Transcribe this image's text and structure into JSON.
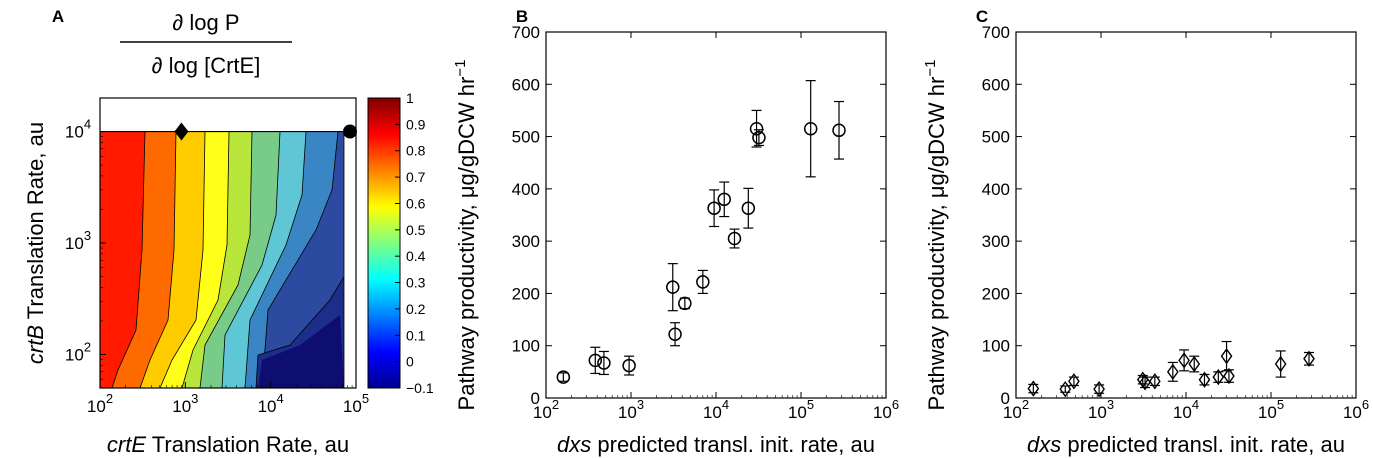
{
  "chart_data": [
    {
      "panel": "A",
      "type": "heatmap",
      "title_numerator": "∂ log P",
      "title_denominator": "∂ log [CrtE]",
      "xlabel_italic": "crtE",
      "xlabel_rest": " Translation Rate, au",
      "ylabel_italic": "crtB",
      "ylabel_rest": " Translation Rate, au",
      "xscale": "log",
      "yscale": "log",
      "xlim": [
        100,
        100000
      ],
      "ylim": [
        50,
        20000
      ],
      "x_ticks": [
        {
          "value": 100,
          "base": "10",
          "exp": "2"
        },
        {
          "value": 1000,
          "base": "10",
          "exp": "3"
        },
        {
          "value": 10000,
          "base": "10",
          "exp": "4"
        },
        {
          "value": 100000,
          "base": "10",
          "exp": "5"
        }
      ],
      "y_ticks": [
        {
          "value": 100,
          "base": "10",
          "exp": "2"
        },
        {
          "value": 1000,
          "base": "10",
          "exp": "3"
        },
        {
          "value": 10000,
          "base": "10",
          "exp": "4"
        }
      ],
      "contour_levels": [
        1.0,
        0.9,
        0.8,
        0.7,
        0.6,
        0.5,
        0.4,
        0.3,
        0.2,
        0.1,
        0.0,
        -0.1
      ],
      "level_colors": [
        "#ff1a00",
        "#ff6a00",
        "#ffcc00",
        "#ffff1a",
        "#b8e63a",
        "#78cc88",
        "#5ec6d4",
        "#3a86c4",
        "#2c4aa0",
        "#1c2d8a",
        "#0e0e70"
      ],
      "markers": [
        {
          "shape": "diamond",
          "x": 900,
          "y": 10000
        },
        {
          "shape": "circle",
          "x": 85000,
          "y": 10000
        }
      ],
      "colorbar_ticks": [
        "1",
        "0.9",
        "0.8",
        "0.7",
        "0.6",
        "0.5",
        "0.4",
        "0.3",
        "0.2",
        "0.1",
        "0",
        "−0.1"
      ],
      "colorbar_range": [
        -0.1,
        1.0
      ]
    },
    {
      "panel": "B",
      "type": "scatter",
      "marker": "circle",
      "xlabel_italic": "dxs",
      "xlabel_rest": " predicted transl.  init. rate, au",
      "ylabel": "Pathway productivity, μg/gDCW hr",
      "ylabel_sup": "−1",
      "xscale": "log",
      "xlim": [
        100,
        1000000
      ],
      "ylim": [
        0,
        700
      ],
      "y_ticks": [
        "0",
        "100",
        "200",
        "300",
        "400",
        "500",
        "600",
        "700"
      ],
      "x_ticks": [
        {
          "value": 100,
          "base": "10",
          "exp": "2"
        },
        {
          "value": 1000,
          "base": "10",
          "exp": "3"
        },
        {
          "value": 10000,
          "base": "10",
          "exp": "4"
        },
        {
          "value": 100000,
          "base": "10",
          "exp": "5"
        },
        {
          "value": 1000000,
          "base": "10",
          "exp": "6"
        }
      ],
      "points": [
        {
          "x": 160,
          "y": 40,
          "err": 8
        },
        {
          "x": 380,
          "y": 72,
          "err": 25
        },
        {
          "x": 480,
          "y": 67,
          "err": 22
        },
        {
          "x": 950,
          "y": 62,
          "err": 18
        },
        {
          "x": 3100,
          "y": 212,
          "err": 45
        },
        {
          "x": 3300,
          "y": 122,
          "err": 22
        },
        {
          "x": 4300,
          "y": 181,
          "err": 10
        },
        {
          "x": 7000,
          "y": 222,
          "err": 22
        },
        {
          "x": 9500,
          "y": 363,
          "err": 35
        },
        {
          "x": 12500,
          "y": 380,
          "err": 33
        },
        {
          "x": 16500,
          "y": 305,
          "err": 18
        },
        {
          "x": 24000,
          "y": 363,
          "err": 38
        },
        {
          "x": 30000,
          "y": 515,
          "err": 35
        },
        {
          "x": 32000,
          "y": 498,
          "err": 15
        },
        {
          "x": 130000,
          "y": 515,
          "err": 92
        },
        {
          "x": 280000,
          "y": 512,
          "err": 55
        }
      ]
    },
    {
      "panel": "C",
      "type": "scatter",
      "marker": "diamond",
      "xlabel_italic": "dxs",
      "xlabel_rest": " predicted transl.  init. rate, au",
      "ylabel": "Pathway productivity, μg/gDCW hr",
      "ylabel_sup": "−1",
      "xscale": "log",
      "xlim": [
        100,
        1000000
      ],
      "ylim": [
        0,
        700
      ],
      "y_ticks": [
        "0",
        "100",
        "200",
        "300",
        "400",
        "500",
        "600",
        "700"
      ],
      "x_ticks": [
        {
          "value": 100,
          "base": "10",
          "exp": "2"
        },
        {
          "value": 1000,
          "base": "10",
          "exp": "3"
        },
        {
          "value": 10000,
          "base": "10",
          "exp": "4"
        },
        {
          "value": 100000,
          "base": "10",
          "exp": "5"
        },
        {
          "value": 1000000,
          "base": "10",
          "exp": "6"
        }
      ],
      "points": [
        {
          "x": 160,
          "y": 18,
          "err": 8
        },
        {
          "x": 380,
          "y": 17,
          "err": 6
        },
        {
          "x": 480,
          "y": 32,
          "err": 8
        },
        {
          "x": 950,
          "y": 17,
          "err": 8
        },
        {
          "x": 3100,
          "y": 35,
          "err": 8
        },
        {
          "x": 3300,
          "y": 30,
          "err": 10
        },
        {
          "x": 4300,
          "y": 32,
          "err": 8
        },
        {
          "x": 7000,
          "y": 50,
          "err": 18
        },
        {
          "x": 9500,
          "y": 72,
          "err": 20
        },
        {
          "x": 12500,
          "y": 65,
          "err": 15
        },
        {
          "x": 16500,
          "y": 35,
          "err": 10
        },
        {
          "x": 24000,
          "y": 40,
          "err": 10
        },
        {
          "x": 30000,
          "y": 80,
          "err": 28
        },
        {
          "x": 32000,
          "y": 42,
          "err": 12
        },
        {
          "x": 130000,
          "y": 65,
          "err": 25
        },
        {
          "x": 280000,
          "y": 75,
          "err": 12
        }
      ]
    }
  ],
  "panel_letters": {
    "a": "A",
    "b": "B",
    "c": "C"
  }
}
